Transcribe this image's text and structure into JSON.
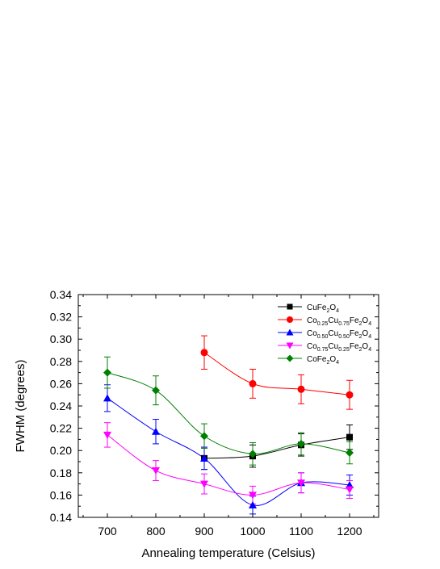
{
  "chart_data": {
    "type": "scatter",
    "title": "",
    "xlabel": "Annealing temperature (Celsius)",
    "ylabel": "FWHM (degrees)",
    "xlim": [
      640,
      1260
    ],
    "ylim": [
      0.14,
      0.34
    ],
    "xticks": [
      700,
      800,
      900,
      1000,
      1100,
      1200
    ],
    "yticks": [
      0.14,
      0.16,
      0.18,
      0.2,
      0.22,
      0.24,
      0.26,
      0.28,
      0.3,
      0.32,
      0.34
    ],
    "ytick_labels": [
      "0.14",
      "0.16",
      "0.18",
      "0.20",
      "0.22",
      "0.24",
      "0.26",
      "0.28",
      "0.30",
      "0.32",
      "0.34"
    ],
    "grid": false,
    "legend_position": "top-right",
    "series": [
      {
        "name": "CuFe2O4",
        "label_parts": [
          [
            "CuFe",
            ""
          ],
          [
            "2",
            "sub"
          ],
          [
            "O",
            ""
          ],
          [
            "4",
            "sub"
          ]
        ],
        "color": "#000000",
        "marker": "square",
        "x": [
          900,
          1000,
          1100,
          1200
        ],
        "y": [
          0.193,
          0.195,
          0.205,
          0.212
        ],
        "err": [
          0.01,
          0.01,
          0.01,
          0.011
        ]
      },
      {
        "name": "Co0.25Cu0.75Fe2O4",
        "label_parts": [
          [
            "Co",
            ""
          ],
          [
            "0.25",
            "sub"
          ],
          [
            "Cu",
            ""
          ],
          [
            "0.75",
            "sub"
          ],
          [
            "Fe",
            ""
          ],
          [
            "2",
            "sub"
          ],
          [
            "O",
            ""
          ],
          [
            "4",
            "sub"
          ]
        ],
        "color": "#ff0000",
        "marker": "circle",
        "x": [
          900,
          1000,
          1100,
          1200
        ],
        "y": [
          0.288,
          0.26,
          0.255,
          0.25
        ],
        "err": [
          0.015,
          0.013,
          0.013,
          0.013
        ]
      },
      {
        "name": "Co0.50Cu0.50Fe2O4",
        "label_parts": [
          [
            "Co",
            ""
          ],
          [
            "0.50",
            "sub"
          ],
          [
            "Cu",
            ""
          ],
          [
            "0.50",
            "sub"
          ],
          [
            "Fe",
            ""
          ],
          [
            "2",
            "sub"
          ],
          [
            "O",
            ""
          ],
          [
            "4",
            "sub"
          ]
        ],
        "color": "#0000ff",
        "marker": "triangle-up",
        "x": [
          700,
          800,
          900,
          1000,
          1100,
          1200
        ],
        "y": [
          0.247,
          0.217,
          0.193,
          0.151,
          0.171,
          0.169
        ],
        "err": [
          0.012,
          0.011,
          0.01,
          0.008,
          0.009,
          0.009
        ]
      },
      {
        "name": "Co0.75Cu0.25Fe2O4",
        "label_parts": [
          [
            "Co",
            ""
          ],
          [
            "0.75",
            "sub"
          ],
          [
            "Cu",
            ""
          ],
          [
            "0.25",
            "sub"
          ],
          [
            "Fe",
            ""
          ],
          [
            "2",
            "sub"
          ],
          [
            "O",
            ""
          ],
          [
            "4",
            "sub"
          ]
        ],
        "color": "#ff00ff",
        "marker": "triangle-down",
        "x": [
          700,
          800,
          900,
          1000,
          1100,
          1200
        ],
        "y": [
          0.214,
          0.182,
          0.17,
          0.16,
          0.171,
          0.165
        ],
        "err": [
          0.011,
          0.009,
          0.009,
          0.008,
          0.009,
          0.008
        ]
      },
      {
        "name": "CoFe2O4",
        "label_parts": [
          [
            "CoFe",
            ""
          ],
          [
            "2",
            "sub"
          ],
          [
            "O",
            ""
          ],
          [
            "4",
            "sub"
          ]
        ],
        "color": "#008000",
        "marker": "diamond",
        "x": [
          700,
          800,
          900,
          1000,
          1100,
          1200
        ],
        "y": [
          0.27,
          0.254,
          0.213,
          0.197,
          0.206,
          0.198
        ],
        "err": [
          0.014,
          0.013,
          0.011,
          0.01,
          0.01,
          0.01
        ]
      }
    ]
  }
}
